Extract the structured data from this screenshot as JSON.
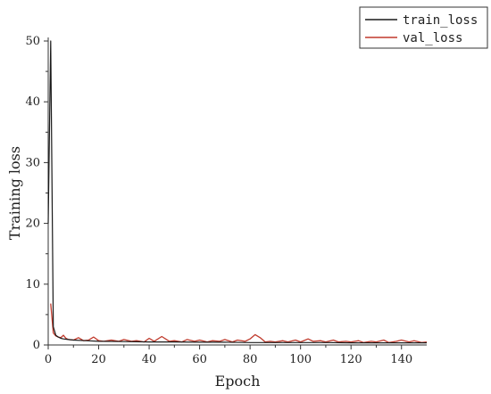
{
  "chart_data": {
    "type": "line",
    "xlabel": "Epoch",
    "ylabel": "Training loss",
    "xlim": [
      0,
      150
    ],
    "ylim": [
      0,
      50
    ],
    "x_ticks": [
      "0",
      "20",
      "40",
      "60",
      "80",
      "100",
      "120",
      "140"
    ],
    "y_ticks": [
      "0",
      "10",
      "20",
      "30",
      "40",
      "50"
    ],
    "grid": false,
    "legend_position": "top-right",
    "series": [
      {
        "name": "train_loss",
        "color": "#1a1a1a",
        "x": [
          0,
          1,
          2,
          3,
          4,
          5,
          6,
          8,
          10,
          15,
          20,
          30,
          40,
          50,
          60,
          70,
          80,
          90,
          100,
          110,
          120,
          130,
          140,
          150
        ],
        "values": [
          20.0,
          50.0,
          3.0,
          1.6,
          1.3,
          1.1,
          1.0,
          0.9,
          0.8,
          0.7,
          0.6,
          0.55,
          0.5,
          0.5,
          0.45,
          0.45,
          0.4,
          0.4,
          0.4,
          0.4,
          0.35,
          0.35,
          0.35,
          0.35
        ]
      },
      {
        "name": "val_loss",
        "color": "#c0392b",
        "x": [
          1,
          2,
          3,
          4,
          5,
          6,
          7,
          8,
          10,
          12,
          14,
          16,
          18,
          20,
          22,
          25,
          28,
          30,
          33,
          35,
          38,
          40,
          42,
          45,
          48,
          50,
          53,
          55,
          58,
          60,
          63,
          65,
          68,
          70,
          73,
          75,
          78,
          80,
          82,
          84,
          86,
          88,
          90,
          93,
          95,
          98,
          100,
          103,
          105,
          108,
          110,
          113,
          115,
          118,
          120,
          123,
          125,
          128,
          130,
          133,
          135,
          138,
          140,
          143,
          145,
          148,
          150
        ],
        "values": [
          6.8,
          2.0,
          1.5,
          1.3,
          1.2,
          1.6,
          1.1,
          0.9,
          0.8,
          1.2,
          0.7,
          0.8,
          1.3,
          0.7,
          0.6,
          0.8,
          0.6,
          0.9,
          0.6,
          0.7,
          0.5,
          1.1,
          0.6,
          1.4,
          0.6,
          0.7,
          0.5,
          0.9,
          0.6,
          0.8,
          0.5,
          0.7,
          0.6,
          0.9,
          0.5,
          0.8,
          0.6,
          1.0,
          1.7,
          1.2,
          0.5,
          0.6,
          0.5,
          0.7,
          0.5,
          0.8,
          0.5,
          1.0,
          0.6,
          0.7,
          0.5,
          0.8,
          0.5,
          0.6,
          0.5,
          0.7,
          0.4,
          0.6,
          0.5,
          0.8,
          0.4,
          0.6,
          0.8,
          0.5,
          0.7,
          0.4,
          0.5
        ]
      }
    ]
  }
}
